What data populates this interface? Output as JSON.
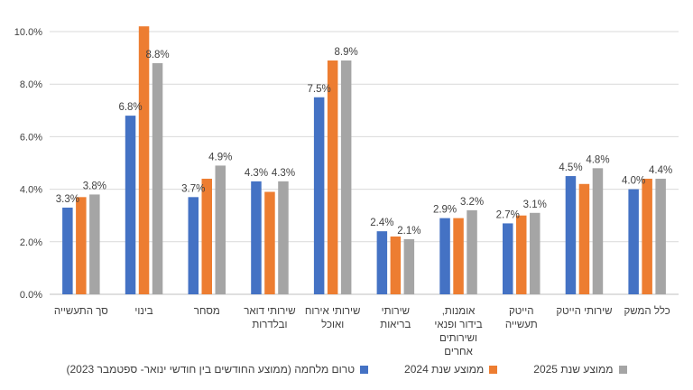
{
  "chart_data": {
    "type": "bar",
    "categories": [
      "סך התעשייה",
      "בינוי",
      "מסחר",
      "שירותי דואר ובלדרות",
      "שירותי אירוח ואוכל",
      "שירותי בריאות",
      "אומנות, בידור ופנאי ושירותים אחרים",
      "הייטק תעשייה",
      "שירותי הייטק",
      "כלל המשק"
    ],
    "category_lines": [
      [
        "סך התעשייה"
      ],
      [
        "בינוי"
      ],
      [
        "מסחר"
      ],
      [
        "שירותי דואר",
        "ובלדרות"
      ],
      [
        "שירותי אירוח",
        "ואוכל"
      ],
      [
        "שירותי",
        "בריאות"
      ],
      [
        "אומנות,",
        "בידור ופנאי",
        "ושירותים",
        "אחרים"
      ],
      [
        "הייטק",
        "תעשייה"
      ],
      [
        "שירותי הייטק"
      ],
      [
        "כלל המשק"
      ]
    ],
    "series": [
      {
        "name": "טרום מלחמה (ממוצע החודשים בין חודשי ינואר- ספטמבר 2023)",
        "color": "#4472C4",
        "values": [
          3.3,
          6.8,
          3.7,
          4.3,
          7.5,
          2.4,
          2.9,
          2.7,
          4.5,
          4.0
        ]
      },
      {
        "name": "ממוצע שנת 2024",
        "color": "#ED7D31",
        "values": [
          3.7,
          10.2,
          4.4,
          3.9,
          8.9,
          2.2,
          2.9,
          3.0,
          4.2,
          4.4
        ]
      },
      {
        "name": "ממוצע שנת 2025",
        "color": "#A5A5A5",
        "values": [
          3.8,
          8.8,
          4.9,
          4.3,
          8.9,
          2.1,
          3.2,
          3.1,
          4.8,
          4.4
        ]
      }
    ],
    "data_labels": [
      {
        "category": 0,
        "series": 0,
        "text": "3.3%"
      },
      {
        "category": 0,
        "series": 2,
        "text": "3.8%"
      },
      {
        "category": 1,
        "series": 0,
        "text": "6.8%"
      },
      {
        "category": 1,
        "series": 2,
        "text": "8.8%"
      },
      {
        "category": 2,
        "series": 0,
        "text": "3.7%"
      },
      {
        "category": 2,
        "series": 2,
        "text": "4.9%"
      },
      {
        "category": 3,
        "series": 0,
        "text": "4.3%"
      },
      {
        "category": 3,
        "series": 2,
        "text": "4.3%"
      },
      {
        "category": 4,
        "series": 0,
        "text": "7.5%"
      },
      {
        "category": 4,
        "series": 2,
        "text": "8.9%"
      },
      {
        "category": 5,
        "series": 0,
        "text": "2.4%"
      },
      {
        "category": 5,
        "series": 2,
        "text": "2.1%"
      },
      {
        "category": 6,
        "series": 0,
        "text": "2.9%"
      },
      {
        "category": 6,
        "series": 2,
        "text": "3.2%"
      },
      {
        "category": 7,
        "series": 0,
        "text": "2.7%"
      },
      {
        "category": 7,
        "series": 2,
        "text": "3.1%"
      },
      {
        "category": 8,
        "series": 0,
        "text": "4.5%"
      },
      {
        "category": 8,
        "series": 2,
        "text": "4.8%"
      },
      {
        "category": 9,
        "series": 0,
        "text": "4.0%"
      },
      {
        "category": 9,
        "series": 2,
        "text": "4.4%"
      }
    ],
    "yticks": [
      "0.0%",
      "2.0%",
      "4.0%",
      "6.0%",
      "8.0%",
      "10.0%"
    ],
    "ylim": [
      0,
      10
    ],
    "grid": true,
    "legend_position": "bottom",
    "title": "",
    "xlabel": "",
    "ylabel": ""
  }
}
